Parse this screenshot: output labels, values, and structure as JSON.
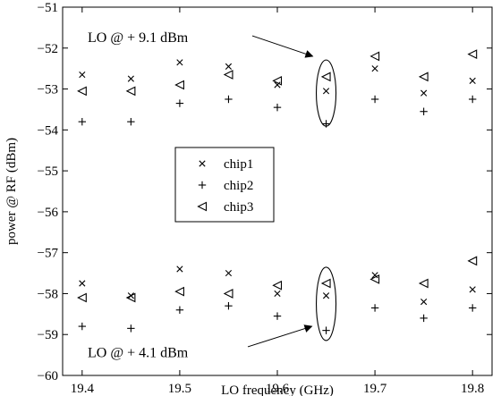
{
  "chart_data": {
    "type": "scatter",
    "xlabel": "LO frequency (GHz)",
    "ylabel": "power @ RF (dBm)",
    "xlim": [
      19.38,
      19.82
    ],
    "ylim": [
      -60,
      -51
    ],
    "x_ticks": [
      "19.4",
      "19.5",
      "19.6",
      "19.7",
      "19.8"
    ],
    "y_ticks": [
      "−60",
      "−59",
      "−58",
      "−57",
      "−56",
      "−55",
      "−54",
      "−53",
      "−52",
      "−51"
    ],
    "grid": false,
    "legend_position": "center-left",
    "series": [
      {
        "name": "chip1",
        "marker": "x",
        "high": [
          [
            19.4,
            -52.65
          ],
          [
            19.45,
            -52.75
          ],
          [
            19.5,
            -52.35
          ],
          [
            19.55,
            -52.45
          ],
          [
            19.6,
            -52.9
          ],
          [
            19.65,
            -53.05
          ],
          [
            19.7,
            -52.5
          ],
          [
            19.75,
            -53.1
          ],
          [
            19.8,
            -52.8
          ]
        ],
        "low": [
          [
            19.4,
            -57.75
          ],
          [
            19.45,
            -58.05
          ],
          [
            19.5,
            -57.4
          ],
          [
            19.55,
            -57.5
          ],
          [
            19.6,
            -58.0
          ],
          [
            19.65,
            -58.05
          ],
          [
            19.7,
            -57.55
          ],
          [
            19.75,
            -58.2
          ],
          [
            19.8,
            -57.9
          ]
        ]
      },
      {
        "name": "chip2",
        "marker": "+",
        "high": [
          [
            19.4,
            -53.8
          ],
          [
            19.45,
            -53.8
          ],
          [
            19.5,
            -53.35
          ],
          [
            19.55,
            -53.25
          ],
          [
            19.6,
            -53.45
          ],
          [
            19.65,
            -53.85
          ],
          [
            19.7,
            -53.25
          ],
          [
            19.75,
            -53.55
          ],
          [
            19.8,
            -53.25
          ]
        ],
        "low": [
          [
            19.4,
            -58.8
          ],
          [
            19.45,
            -58.85
          ],
          [
            19.5,
            -58.4
          ],
          [
            19.55,
            -58.3
          ],
          [
            19.6,
            -58.55
          ],
          [
            19.65,
            -58.9
          ],
          [
            19.7,
            -58.35
          ],
          [
            19.75,
            -58.6
          ],
          [
            19.8,
            -58.35
          ]
        ]
      },
      {
        "name": "chip3",
        "marker": "<",
        "high": [
          [
            19.4,
            -53.05
          ],
          [
            19.45,
            -53.05
          ],
          [
            19.5,
            -52.9
          ],
          [
            19.55,
            -52.65
          ],
          [
            19.6,
            -52.8
          ],
          [
            19.65,
            -52.7
          ],
          [
            19.7,
            -52.2
          ],
          [
            19.75,
            -52.7
          ],
          [
            19.8,
            -52.15
          ]
        ],
        "low": [
          [
            19.4,
            -58.1
          ],
          [
            19.45,
            -58.1
          ],
          [
            19.5,
            -57.95
          ],
          [
            19.55,
            -58.0
          ],
          [
            19.6,
            -57.8
          ],
          [
            19.65,
            -57.75
          ],
          [
            19.7,
            -57.65
          ],
          [
            19.75,
            -57.75
          ],
          [
            19.8,
            -57.2
          ]
        ]
      }
    ],
    "annotations": [
      {
        "text": "LO @ + 9.1 dBm",
        "points_to": [
          19.65,
          -52.2
        ]
      },
      {
        "text": "LO @ + 4.1 dBm",
        "points_to": [
          19.65,
          -58.8
        ]
      }
    ]
  }
}
